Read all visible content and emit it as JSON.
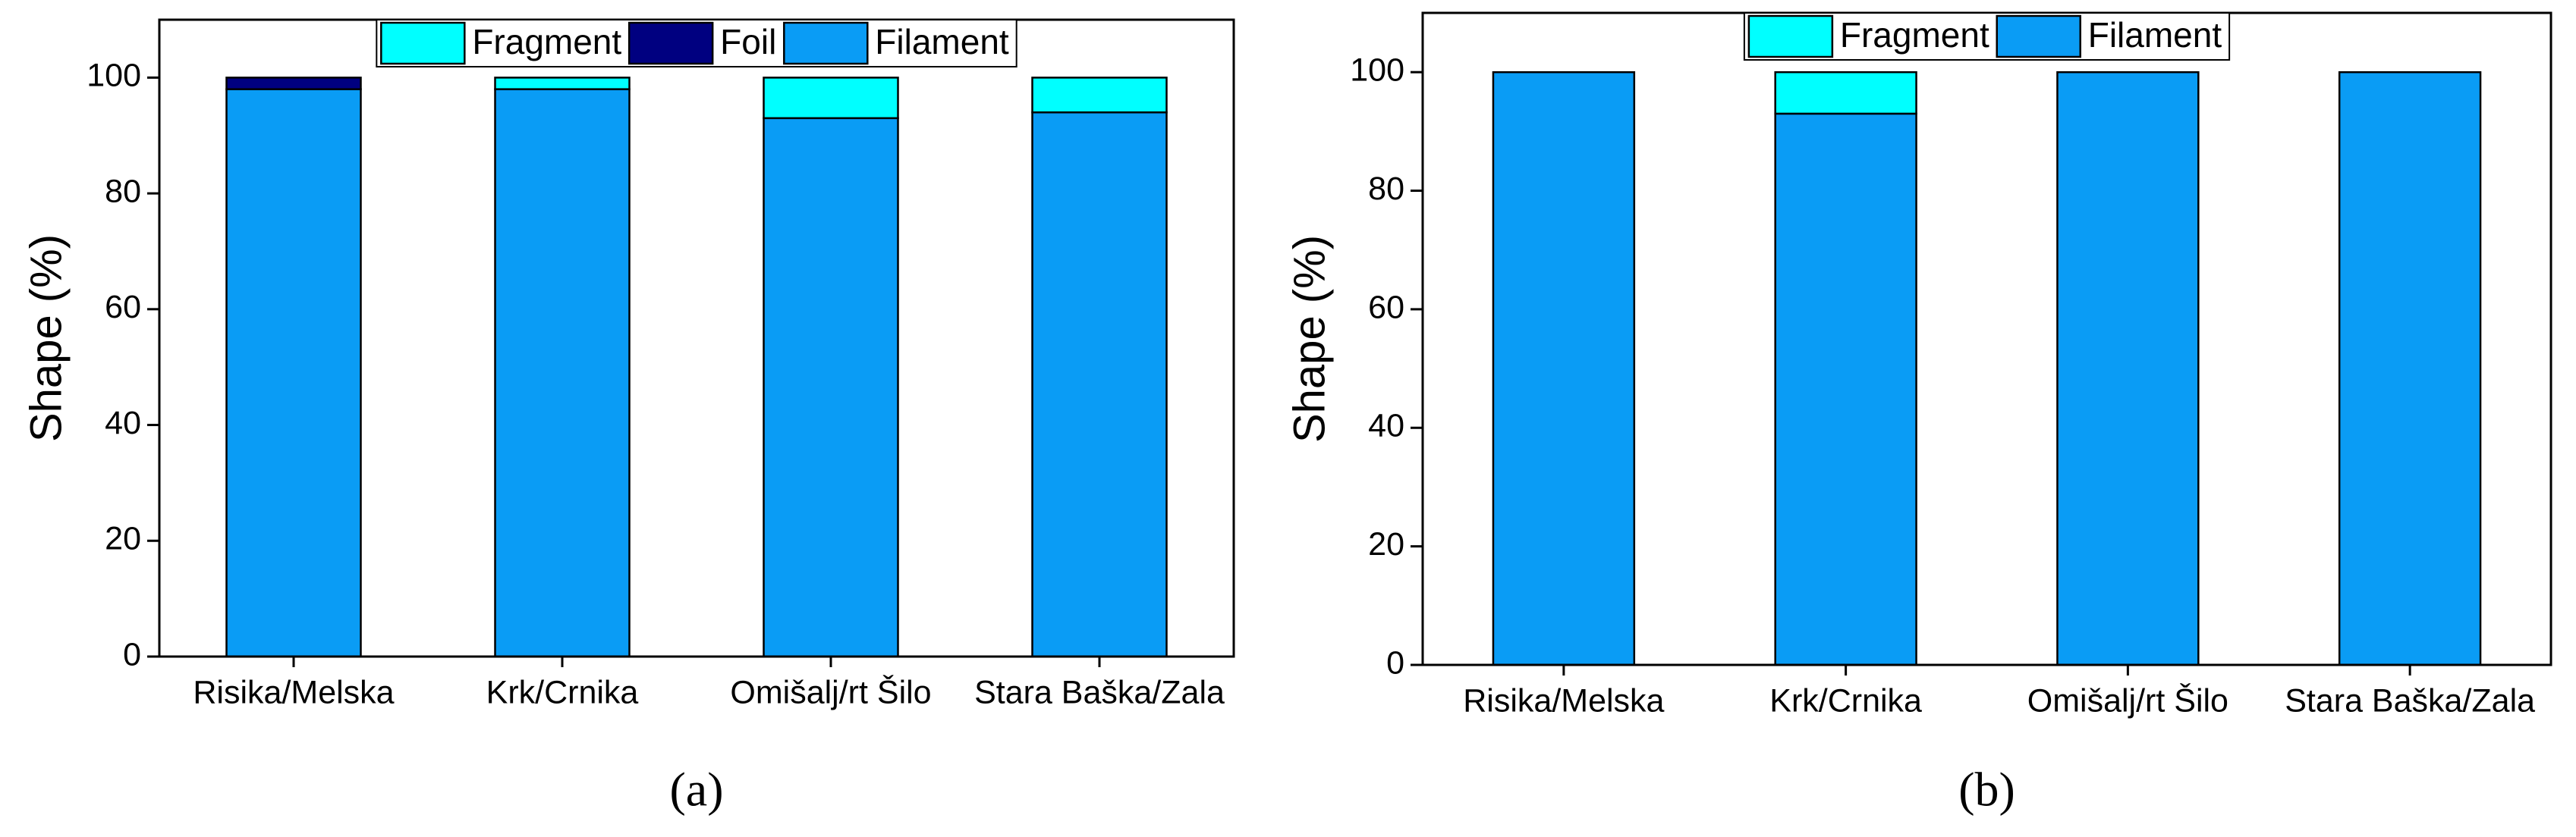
{
  "chart_data": [
    {
      "type": "bar",
      "stacked": true,
      "label": "(a)",
      "ylabel": "Shape (%)",
      "categories": [
        "Risika/Melska",
        "Krk/Crnika",
        "Omišalj/rt Šilo",
        "Stara Baška/Zala"
      ],
      "series": [
        {
          "name": "Filament",
          "color": "#0a9cf5",
          "values": [
            98,
            98,
            93,
            94
          ]
        },
        {
          "name": "Foil",
          "color": "#000080",
          "values": [
            2,
            0,
            0,
            0
          ]
        },
        {
          "name": "Fragment",
          "color": "#00ffff",
          "values": [
            0,
            2,
            7,
            6
          ]
        }
      ],
      "ylim": [
        0,
        110
      ],
      "yticks": [
        0,
        20,
        40,
        60,
        80,
        100
      ],
      "legend": "top"
    },
    {
      "type": "bar",
      "stacked": true,
      "label": "(b)",
      "ylabel": "Shape (%)",
      "categories": [
        "Risika/Melska",
        "Krk/Crnika",
        "Omišalj/rt Šilo",
        "Stara Baška/Zala"
      ],
      "series": [
        {
          "name": "Filament",
          "color": "#0a9cf5",
          "values": [
            100,
            93,
            100,
            100
          ]
        },
        {
          "name": "Fragment",
          "color": "#00ffff",
          "values": [
            0,
            7,
            0,
            0
          ]
        }
      ],
      "ylim": [
        0,
        110
      ],
      "yticks": [
        0,
        20,
        40,
        60,
        80,
        100
      ],
      "legend": "top"
    }
  ]
}
